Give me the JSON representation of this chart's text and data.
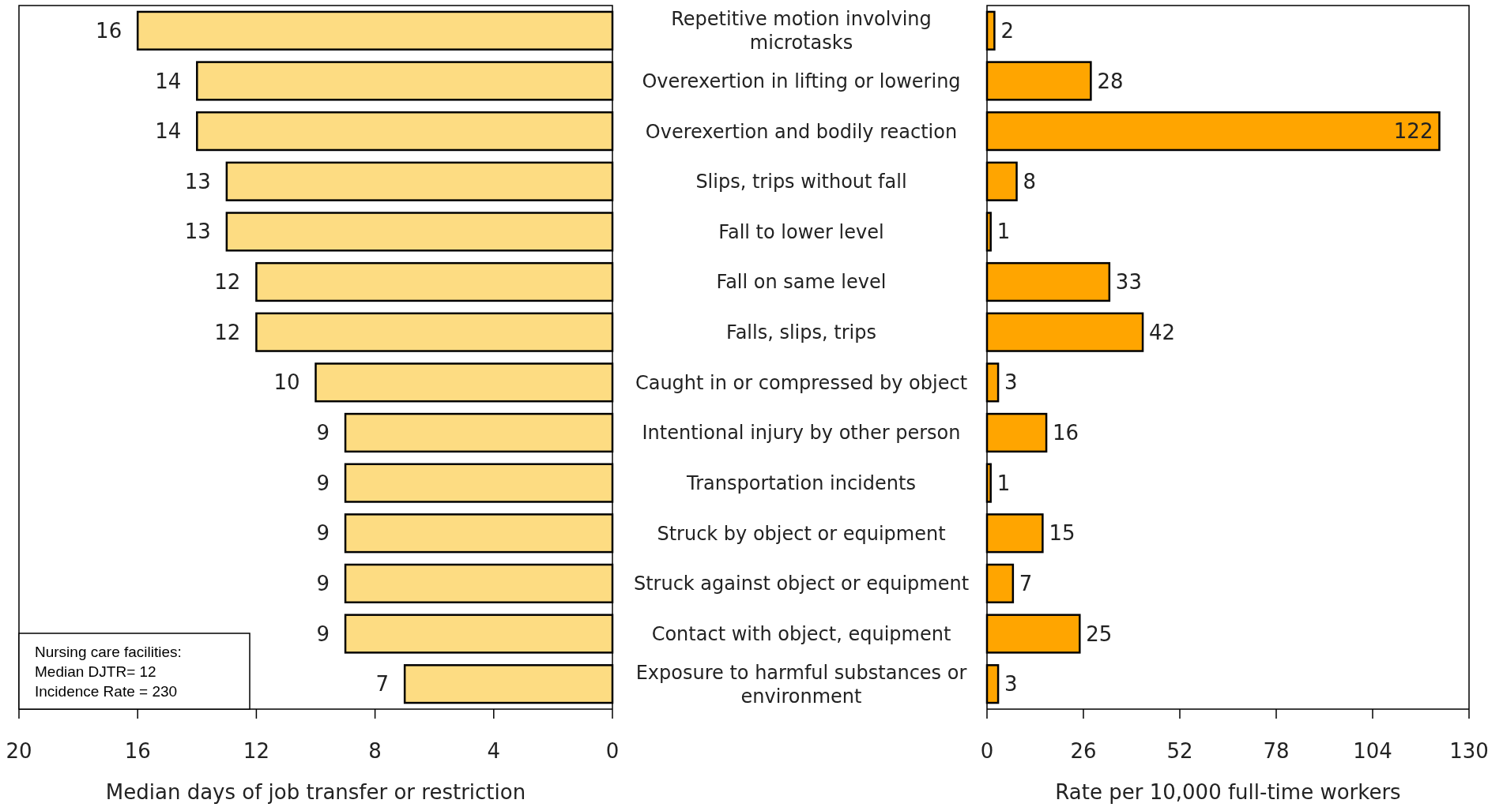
{
  "chart_data": [
    {
      "type": "bar",
      "orientation": "horizontal",
      "categories": [
        "Repetitive motion involving microtasks",
        "Overexertion in lifting or lowering",
        "Overexertion and bodily reaction",
        "Slips, trips without fall",
        "Fall to lower level",
        "Fall on same level",
        "Falls, slips, trips",
        "Caught in or compressed by object",
        "Intentional injury by other person",
        "Transportation incidents",
        "Struck by object or equipment",
        "Struck against object or equipment",
        "Contact with object, equipment",
        "Exposure to harmful substances or environment"
      ],
      "values": [
        16,
        14,
        14,
        13,
        13,
        12,
        12,
        10,
        9,
        9,
        9,
        9,
        9,
        7
      ],
      "color": "#fddc82",
      "xlim": [
        20,
        0
      ],
      "xticks": [
        20,
        16,
        12,
        8,
        4,
        0
      ],
      "xlabel": "Median days of job transfer or restriction",
      "data_labels": true,
      "annotations": [
        "Nursing care facilities:",
        "Median DJTR= 12",
        "Incidence Rate = 230"
      ]
    },
    {
      "type": "bar",
      "orientation": "horizontal",
      "categories": [
        "Repetitive motion involving microtasks",
        "Overexertion in lifting or lowering",
        "Overexertion and bodily reaction",
        "Slips, trips without fall",
        "Fall to lower level",
        "Fall on same level",
        "Falls, slips, trips",
        "Caught in or compressed by object",
        "Intentional injury by other person",
        "Transportation incidents",
        "Struck by object or equipment",
        "Struck against object or equipment",
        "Contact with object, equipment",
        "Exposure to harmful substances or environment"
      ],
      "values": [
        2,
        28,
        122,
        8,
        1,
        33,
        42,
        3,
        16,
        1,
        15,
        7,
        25,
        3
      ],
      "color": "#ffa500",
      "xlim": [
        0,
        130
      ],
      "xticks": [
        0,
        26,
        52,
        78,
        104,
        130
      ],
      "xlabel": "Rate per 10,000 full-time workers",
      "data_labels": true,
      "tick_labels": "x"
    }
  ]
}
